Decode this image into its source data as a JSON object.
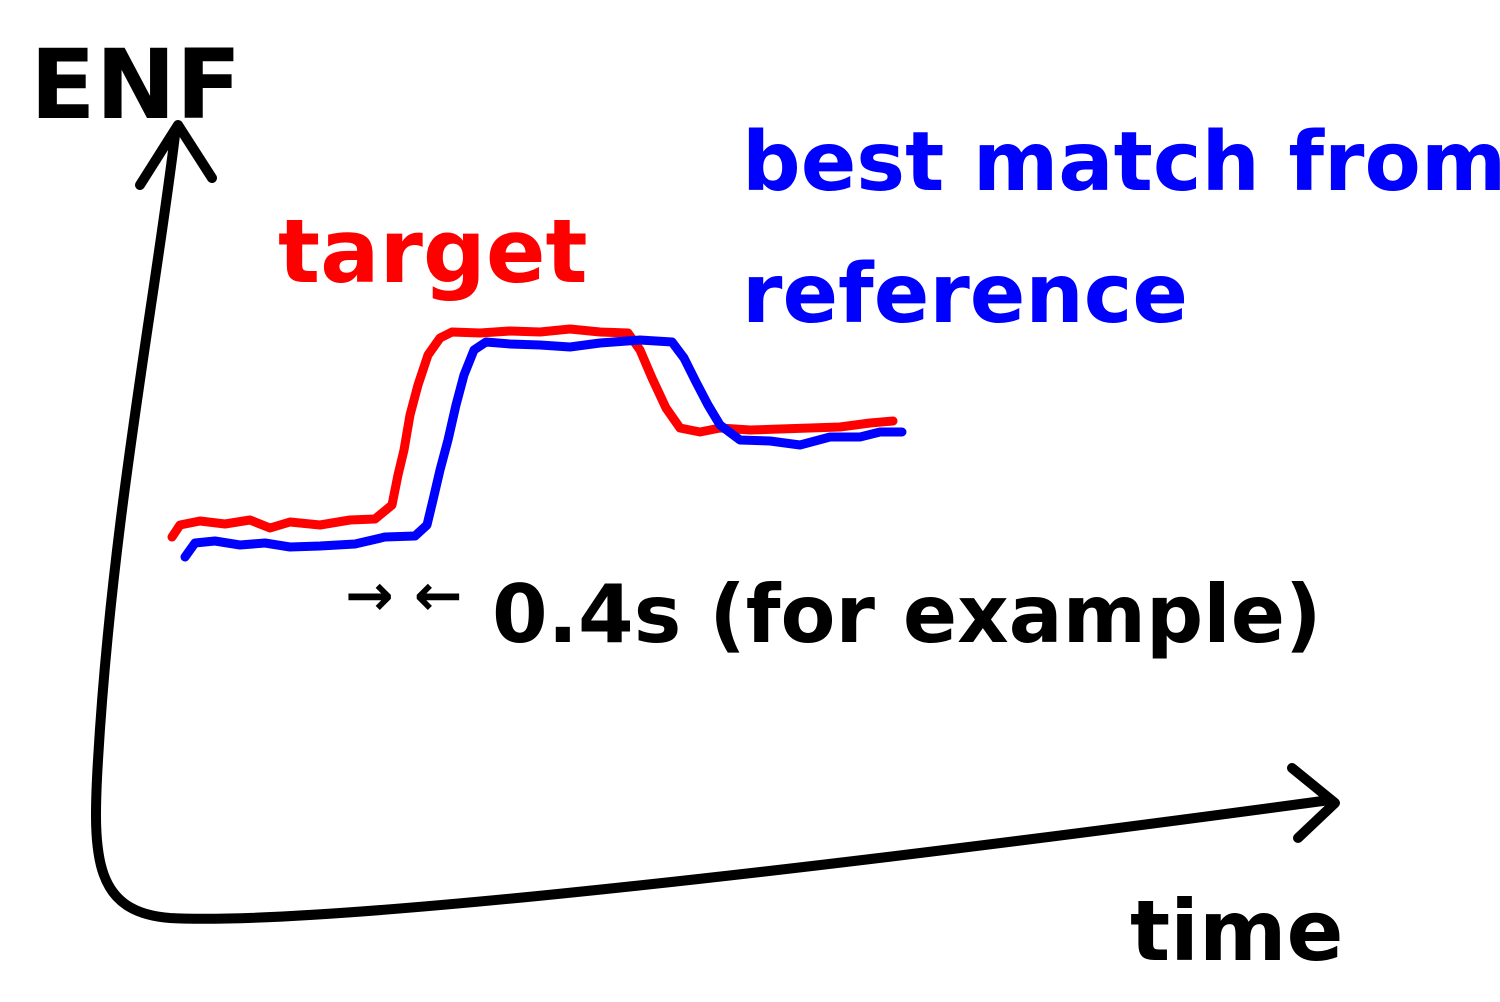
{
  "labels": {
    "y_axis": "ENF",
    "x_axis": "time",
    "target": "target",
    "reference_line1": "best match from",
    "reference_line2": "reference",
    "offset_arrows": "→ ←",
    "offset_note": "0.4s (for example)"
  },
  "series": [
    {
      "key": "target",
      "color": "#ff0000"
    },
    {
      "key": "reference",
      "color": "#0000ff"
    }
  ],
  "colors": {
    "axis": "#000000",
    "target": "#ff0000",
    "reference": "#0000ff",
    "background": "#ffffff"
  }
}
